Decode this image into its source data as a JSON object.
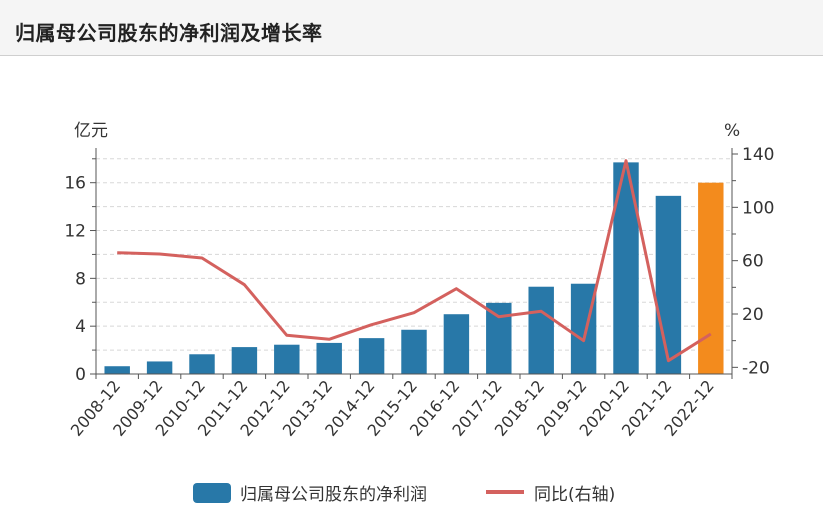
{
  "page": {
    "title": "归属母公司股东的净利润及增长率"
  },
  "chart_data": {
    "type": "bar",
    "categories": [
      "2008-12",
      "2009-12",
      "2010-12",
      "2011-12",
      "2012-12",
      "2013-12",
      "2014-12",
      "2015-12",
      "2016-12",
      "2017-12",
      "2018-12",
      "2019-12",
      "2020-12",
      "2021-12",
      "2022-12"
    ],
    "series": [
      {
        "name": "归属母公司股东的净利润",
        "type": "bar",
        "axis": "left",
        "values": [
          0.65,
          1.05,
          1.65,
          2.25,
          2.45,
          2.6,
          3.0,
          3.7,
          5.0,
          5.95,
          7.3,
          7.55,
          17.7,
          14.9,
          16.0
        ],
        "color": "#2878a8",
        "highlight_color": "#f38b1d",
        "highlight_index": 14
      },
      {
        "name": "同比(右轴)",
        "type": "line",
        "axis": "right",
        "values": [
          66,
          65,
          62,
          42,
          4,
          1,
          12,
          21,
          39,
          18,
          22,
          0,
          135,
          -15,
          5
        ],
        "color": "#d4615e"
      }
    ],
    "y_left": {
      "unit": "亿元",
      "ticks": [
        0,
        4,
        8,
        12,
        16
      ],
      "range": [
        0,
        18.4
      ]
    },
    "y_right": {
      "unit": "%",
      "ticks": [
        -20,
        20,
        60,
        100,
        140
      ],
      "range": [
        -25,
        140
      ]
    },
    "grid": true,
    "legend_position": "bottom"
  }
}
